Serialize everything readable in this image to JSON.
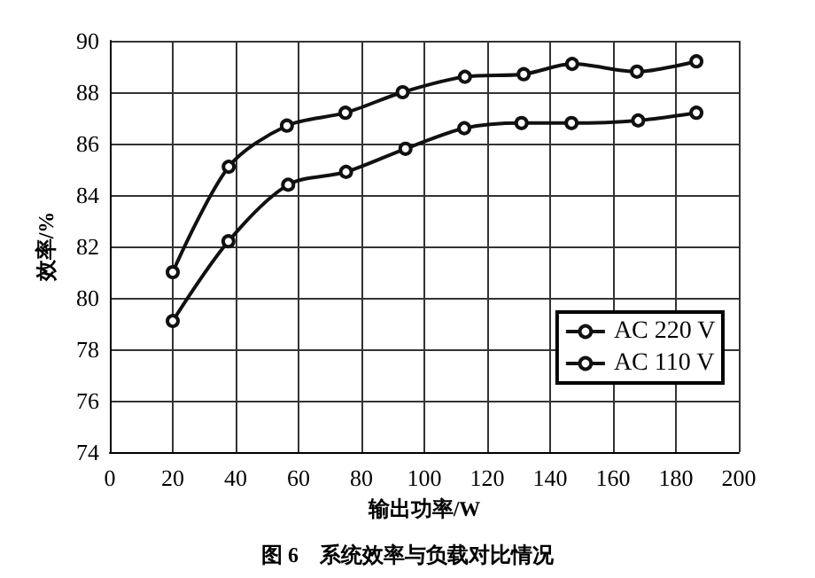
{
  "chart_data": {
    "type": "line",
    "title": "图 6　系统效率与负载对比情况",
    "xlabel": "输出功率/W",
    "ylabel": "效率/%",
    "xlim": [
      0,
      200
    ],
    "xticks": [
      0,
      20,
      40,
      60,
      80,
      100,
      120,
      140,
      160,
      180,
      200
    ],
    "ylim": [
      74,
      90
    ],
    "yticks": [
      74,
      76,
      78,
      80,
      82,
      84,
      86,
      88,
      90
    ],
    "grid": true,
    "legend": "bottom right",
    "marker": "circle",
    "line_style": "solid",
    "series": [
      {
        "name": "AC 220 V",
        "color": "#111111",
        "x": [
          20,
          37.8,
          56.3,
          74.9,
          93.1,
          112.9,
          131.6,
          147,
          167.6,
          186.5
        ],
        "values": [
          81.0,
          85.1,
          86.7,
          87.2,
          88.0,
          88.6,
          88.7,
          89.1,
          88.8,
          89.2
        ]
      },
      {
        "name": "AC 110 V",
        "color": "#111111",
        "x": [
          20,
          37.7,
          56.7,
          75.1,
          94,
          112.7,
          130.9,
          146.8,
          168,
          186.5
        ],
        "values": [
          79.1,
          82.2,
          84.4,
          84.9,
          85.8,
          86.6,
          86.8,
          86.8,
          86.9,
          87.2
        ]
      }
    ]
  }
}
